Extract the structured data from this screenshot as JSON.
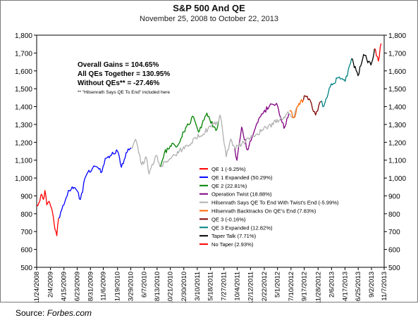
{
  "chart_data": {
    "type": "line",
    "title": "S&P 500 And QE",
    "subtitle": "November 25, 2008 to October  22, 2013",
    "ylim": [
      500,
      1800
    ],
    "yticks": [
      "500",
      "600",
      "700",
      "800",
      "900",
      "1,000",
      "1,100",
      "1,200",
      "1,300",
      "1,400",
      "1,500",
      "1,600",
      "1,700",
      "1,800"
    ],
    "xticks": [
      "11/24/2008",
      "2/4/2009",
      "4/15/2009",
      "6/23/2009",
      "8/31/2009",
      "11/6/2009",
      "1/19/2010",
      "3/29/2010",
      "6/7/2010",
      "8/13/2010",
      "10/21/2010",
      "12/30/2010",
      "3/10/2011",
      "5/18/2011",
      "7/27/2011",
      "10/4/2011",
      "12/12/2011",
      "2/22/2012",
      "5/1/2012",
      "7/10/2012",
      "9/17/2012",
      "11/28/2012",
      "2/6/2013",
      "4/17/2013",
      "6/25/2013",
      "9/2/2013",
      "11/7/2013"
    ],
    "grid": false,
    "annotations": [
      "Overall Gains = 104.65%",
      "All QEs Together = 130.95%",
      "Without QEs** = -27.46%",
      "** \"Hilsenrath Says QE To End\" included here"
    ],
    "legend_position": "center-right",
    "series": [
      {
        "name": "QE 1 (-9.25%)",
        "color": "#ff0000",
        "points": [
          [
            "11/24/2008",
            850
          ],
          [
            "12/5/2008",
            860
          ],
          [
            "12/16/2008",
            905
          ],
          [
            "12/29/2008",
            880
          ],
          [
            "1/6/2009",
            930
          ],
          [
            "1/16/2009",
            850
          ],
          [
            "1/28/2009",
            870
          ],
          [
            "2/10/2009",
            830
          ],
          [
            "2/23/2009",
            745
          ],
          [
            "3/9/2009",
            677
          ],
          [
            "3/18/2009",
            775
          ]
        ]
      },
      {
        "name": "QE 1 Expanded (50.29%)",
        "color": "#0000ff",
        "points": [
          [
            "3/18/2009",
            775
          ],
          [
            "4/15/2009",
            850
          ],
          [
            "5/8/2009",
            930
          ],
          [
            "6/12/2009",
            945
          ],
          [
            "7/10/2009",
            880
          ],
          [
            "8/7/2009",
            1010
          ],
          [
            "9/18/2009",
            1068
          ],
          [
            "10/30/2009",
            1036
          ],
          [
            "11/16/2009",
            1110
          ],
          [
            "1/19/2010",
            1150
          ],
          [
            "2/8/2010",
            1060
          ],
          [
            "3/10/2010",
            1145
          ],
          [
            "3/31/2010",
            1169
          ]
        ]
      },
      {
        "name": "QE 2 (22.81%)",
        "color": "#008000",
        "points": [
          [
            "8/27/2010",
            1065
          ],
          [
            "9/20/2010",
            1140
          ],
          [
            "10/20/2010",
            1180
          ],
          [
            "11/30/2010",
            1185
          ],
          [
            "12/30/2010",
            1258
          ],
          [
            "2/18/2011",
            1343
          ],
          [
            "3/16/2011",
            1257
          ],
          [
            "4/29/2011",
            1364
          ],
          [
            "6/15/2011",
            1266
          ],
          [
            "6/30/2011",
            1321
          ]
        ]
      },
      {
        "name": "Operation Twist (18.88%)",
        "color": "#800080",
        "points": [
          [
            "9/21/2011",
            1167
          ],
          [
            "10/3/2011",
            1099
          ],
          [
            "10/27/2011",
            1285
          ],
          [
            "11/25/2011",
            1158
          ],
          [
            "12/30/2011",
            1257
          ],
          [
            "2/3/2012",
            1345
          ],
          [
            "3/26/2012",
            1416
          ],
          [
            "5/1/2012",
            1405
          ],
          [
            "6/4/2012",
            1278
          ],
          [
            "6/29/2012",
            1362
          ]
        ]
      },
      {
        "name": "Hilsenrath Says QE To End With Twist's End (-5.99%)",
        "color": "#b0b0b0",
        "points": [
          [
            "3/31/2010",
            1169
          ],
          [
            "4/23/2010",
            1217
          ],
          [
            "5/25/2010",
            1074
          ],
          [
            "6/18/2010",
            1117
          ],
          [
            "7/2/2010",
            1022
          ],
          [
            "8/9/2010",
            1127
          ],
          [
            "8/27/2010",
            1065
          ],
          [
            "6/30/2011",
            1321
          ],
          [
            "7/7/2011",
            1353
          ],
          [
            "8/8/2011",
            1119
          ],
          [
            "8/31/2011",
            1218
          ],
          [
            "9/21/2011",
            1167
          ],
          [
            "6/29/2012",
            1362
          ],
          [
            "7/25/2012",
            1338
          ],
          [
            "8/6/2012",
            1390
          ]
        ]
      },
      {
        "name": "Hilsenrath Backtracks On QE's End (7.83%)",
        "color": "#ff6600",
        "points": [
          [
            "7/3/2012",
            1374
          ],
          [
            "7/25/2012",
            1338
          ],
          [
            "8/20/2012",
            1418
          ],
          [
            "9/13/2012",
            1437
          ]
        ]
      },
      {
        "name": "QE 3 (-0.16%)",
        "color": "#800000",
        "points": [
          [
            "9/13/2012",
            1437
          ],
          [
            "9/21/2012",
            1460
          ],
          [
            "10/19/2012",
            1433
          ],
          [
            "11/15/2012",
            1353
          ],
          [
            "12/12/2012",
            1428
          ]
        ]
      },
      {
        "name": "QE 3 Expanded (12.82%)",
        "color": "#008080",
        "points": [
          [
            "12/12/2012",
            1428
          ],
          [
            "12/28/2012",
            1402
          ],
          [
            "1/25/2013",
            1502
          ],
          [
            "3/14/2013",
            1563
          ],
          [
            "4/18/2013",
            1541
          ],
          [
            "5/21/2013",
            1669
          ]
        ]
      },
      {
        "name": "Taper Talk (7.71%)",
        "color": "#000000",
        "points": [
          [
            "5/21/2013",
            1669
          ],
          [
            "6/24/2013",
            1573
          ],
          [
            "7/23/2013",
            1692
          ],
          [
            "8/30/2013",
            1633
          ],
          [
            "9/18/2013",
            1725
          ]
        ]
      },
      {
        "name": "No Taper (2.93%)",
        "color": "#ff0000",
        "points": [
          [
            "9/18/2013",
            1725
          ],
          [
            "10/8/2013",
            1655
          ],
          [
            "10/22/2013",
            1754
          ]
        ]
      }
    ]
  },
  "source": {
    "label": "Source: ",
    "name": "Forbes.com"
  }
}
